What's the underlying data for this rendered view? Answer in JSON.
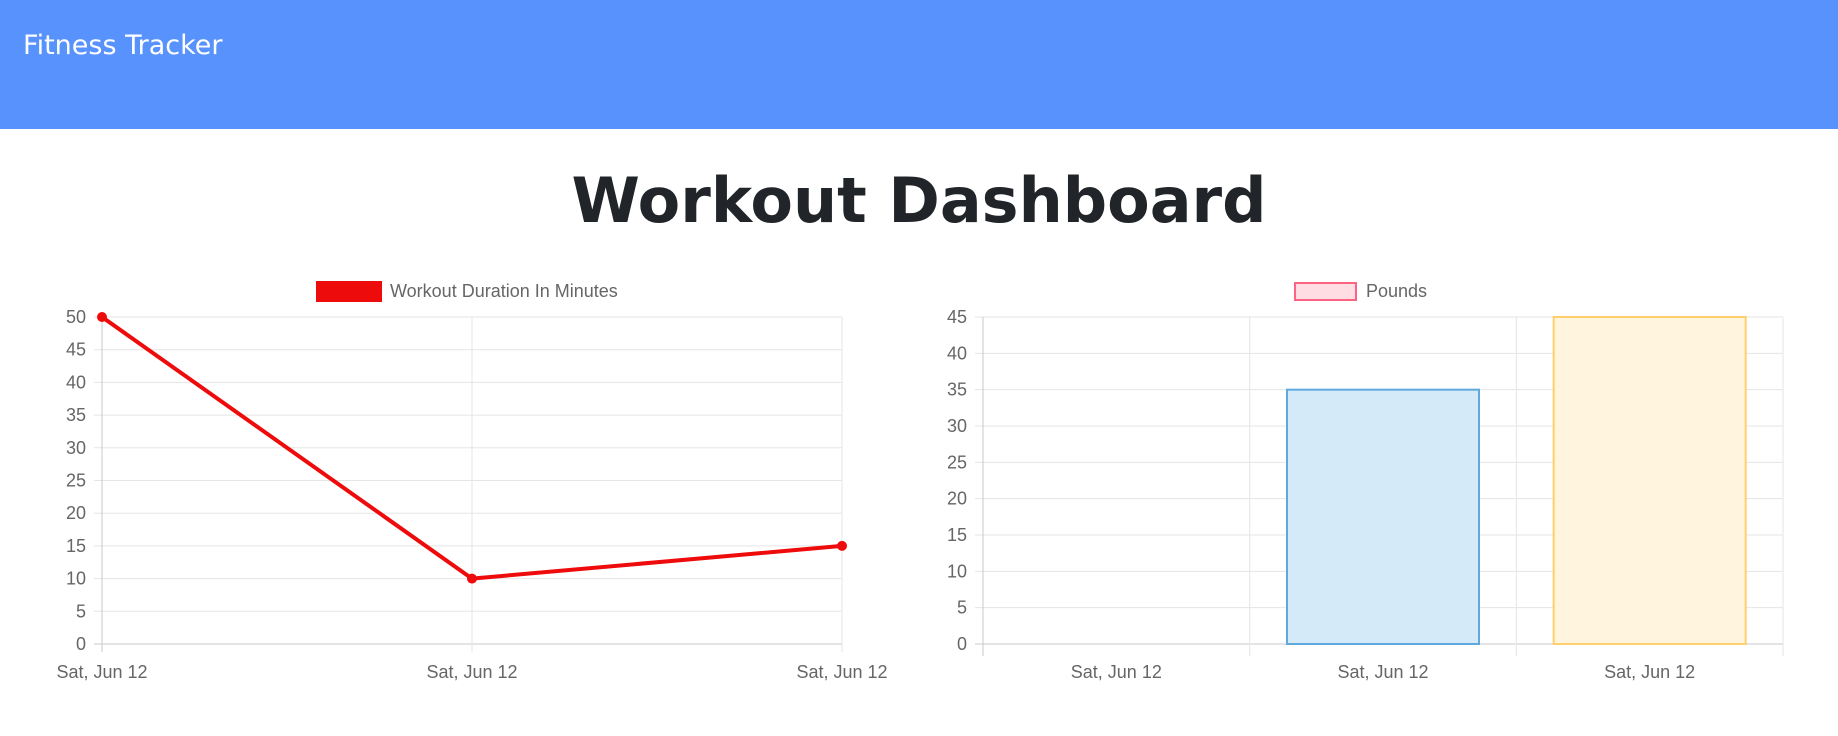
{
  "navbar": {
    "brand": "Fitness Tracker"
  },
  "page": {
    "title": "Workout Dashboard"
  },
  "chart_data": [
    {
      "type": "line",
      "categories": [
        "Sat, Jun 12",
        "Sat, Jun 12",
        "Sat, Jun 12"
      ],
      "series": [
        {
          "name": "Workout Duration In Minutes",
          "values": [
            50,
            10,
            15
          ],
          "color": "#ee0b0b"
        }
      ],
      "title": "",
      "xlabel": "",
      "ylabel": "",
      "ylim": [
        0,
        50
      ],
      "ystep": 5,
      "yticks": [
        "0",
        "5",
        "10",
        "15",
        "20",
        "25",
        "30",
        "35",
        "40",
        "45",
        "50"
      ],
      "grid": true,
      "legend": "top"
    },
    {
      "type": "bar",
      "categories": [
        "Sat, Jun 12",
        "Sat, Jun 12",
        "Sat, Jun 12"
      ],
      "series": [
        {
          "name": "Pounds",
          "values": [
            0,
            35,
            45
          ]
        }
      ],
      "bar_fills": [
        "#ffdde3",
        "#d5eaf9",
        "#fff4dd"
      ],
      "bar_strokes": [
        "#ff6384",
        "#5ea9de",
        "#ffcf6e"
      ],
      "legend_fill": "#ffdde3",
      "legend_stroke": "#ff6384",
      "title": "",
      "xlabel": "",
      "ylabel": "",
      "ylim": [
        0,
        45
      ],
      "ystep": 5,
      "yticks": [
        "0",
        "5",
        "10",
        "15",
        "20",
        "25",
        "30",
        "35",
        "40",
        "45"
      ],
      "grid": true,
      "legend": "top"
    }
  ]
}
